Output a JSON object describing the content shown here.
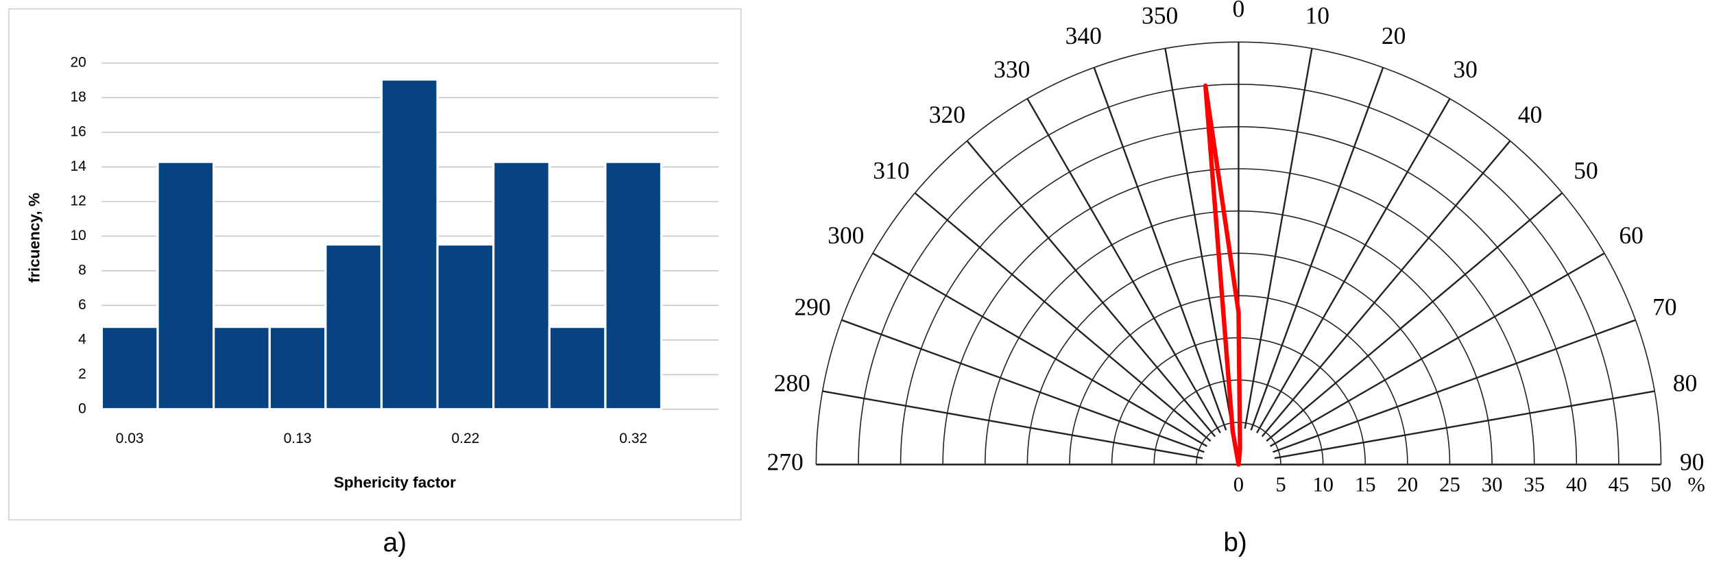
{
  "chart_data": [
    {
      "type": "bar",
      "caption": "a)",
      "xlabel": "Sphericity factor",
      "ylabel": "fricuency, %",
      "categories": [
        "0.03",
        null,
        null,
        "0.13",
        null,
        null,
        "0.22",
        null,
        null,
        "0.32"
      ],
      "values": [
        4.76,
        14.29,
        4.76,
        4.76,
        9.52,
        19.05,
        9.52,
        14.29,
        4.76,
        14.29
      ],
      "color": "#074380",
      "ylim": [
        0,
        20
      ],
      "yticks": [
        0,
        2,
        4,
        6,
        8,
        10,
        12,
        14,
        16,
        18,
        20
      ],
      "grid": true
    },
    {
      "type": "polar",
      "caption": "b)",
      "r_unit": "%",
      "thetaticks": [
        270,
        280,
        290,
        300,
        310,
        320,
        330,
        340,
        350,
        0,
        10,
        20,
        30,
        40,
        50,
        60,
        70,
        80,
        90
      ],
      "rlim": [
        0,
        50
      ],
      "rticks": [
        0,
        5,
        10,
        15,
        20,
        25,
        30,
        35,
        40,
        45,
        50
      ],
      "grid": true,
      "series": [
        {
          "color": "#ff0000",
          "theta": [
            350,
            355,
            0,
            5
          ],
          "values": [
            4,
            45,
            18,
            2
          ]
        }
      ]
    }
  ]
}
